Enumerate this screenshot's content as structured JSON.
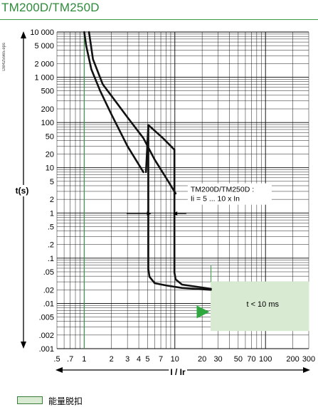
{
  "title": "TM200D/TM250D",
  "doc_code": "DB425565.eps",
  "legend": {
    "label": "能量脱扣",
    "color": "#d8ebd2"
  },
  "chart_data": {
    "type": "line",
    "title": "TM200D/TM250D",
    "xlabel": "I / Ir",
    "ylabel": "t(s)",
    "x_scale": "log",
    "y_scale": "log",
    "xlim": [
      0.5,
      300
    ],
    "ylim": [
      0.001,
      10000
    ],
    "grid": true,
    "x_ticks": [
      {
        "v": 0.5,
        "label": ".5"
      },
      {
        "v": 0.7,
        "label": ".7"
      },
      {
        "v": 1,
        "label": "1"
      },
      {
        "v": 2,
        "label": "2"
      },
      {
        "v": 3,
        "label": "3"
      },
      {
        "v": 4,
        "label": "4"
      },
      {
        "v": 5,
        "label": "5"
      },
      {
        "v": 7,
        "label": "7"
      },
      {
        "v": 10,
        "label": "10"
      },
      {
        "v": 20,
        "label": "20"
      },
      {
        "v": 30,
        "label": "30"
      },
      {
        "v": 50,
        "label": "50"
      },
      {
        "v": 70,
        "label": "70"
      },
      {
        "v": 100,
        "label": "100"
      },
      {
        "v": 200,
        "label": "200"
      },
      {
        "v": 300,
        "label": "300"
      }
    ],
    "y_ticks": [
      {
        "v": 10000,
        "label": "10 000"
      },
      {
        "v": 5000,
        "label": "5 000"
      },
      {
        "v": 2000,
        "label": "2 000"
      },
      {
        "v": 1000,
        "label": "1 000"
      },
      {
        "v": 500,
        "label": "500"
      },
      {
        "v": 200,
        "label": "200"
      },
      {
        "v": 100,
        "label": "100"
      },
      {
        "v": 50,
        "label": "50"
      },
      {
        "v": 20,
        "label": "20"
      },
      {
        "v": 10,
        "label": "10"
      },
      {
        "v": 5,
        "label": "5"
      },
      {
        "v": 2,
        "label": "2"
      },
      {
        "v": 1,
        "label": "1"
      },
      {
        "v": 0.5,
        "label": ".5"
      },
      {
        "v": 0.2,
        "label": ".2"
      },
      {
        "v": 0.1,
        "label": ".1"
      },
      {
        "v": 0.05,
        "label": ".05"
      },
      {
        "v": 0.02,
        "label": ".02"
      },
      {
        "v": 0.01,
        "label": ".01"
      },
      {
        "v": 0.005,
        "label": ".005"
      },
      {
        "v": 0.002,
        "label": ".002"
      },
      {
        "v": 0.001,
        "label": ".001"
      }
    ],
    "reference_line_x": 1,
    "series": [
      {
        "x": [
          1.0,
          1.05,
          1.2,
          1.5,
          2,
          3,
          4.5
        ],
        "y": [
          10000,
          5000,
          1500,
          500,
          150,
          30,
          8
        ]
      },
      {
        "x": [
          1.13,
          1.25,
          1.6,
          2.2,
          3,
          4.5,
          6,
          8,
          10.2
        ],
        "y": [
          10000,
          2500,
          700,
          300,
          130,
          45,
          15,
          6,
          2.7
        ]
      },
      {
        "x": [
          4.8,
          5.1,
          7.4,
          9.9
        ],
        "y": [
          8,
          88,
          45,
          25
        ]
      },
      {
        "x": [
          5.1,
          5.1,
          5.25,
          6,
          8,
          12,
          25
        ],
        "y": [
          88,
          0.058,
          0.039,
          0.028,
          0.025,
          0.022,
          0.02
        ]
      },
      {
        "x": [
          9.9,
          9.9,
          10.2,
          12,
          25
        ],
        "y": [
          25,
          0.048,
          0.034,
          0.026,
          0.021
        ]
      }
    ],
    "annotations": [
      {
        "lines": [
          "TM200D/TM250D :",
          "Ii = 5 ... 10 x In"
        ],
        "x": 12,
        "y": 2.1
      },
      {
        "label": "t < 10 ms",
        "region": {
          "x": [
            25,
            300
          ],
          "y": [
            0.0025,
            0.03
          ]
        }
      }
    ]
  }
}
